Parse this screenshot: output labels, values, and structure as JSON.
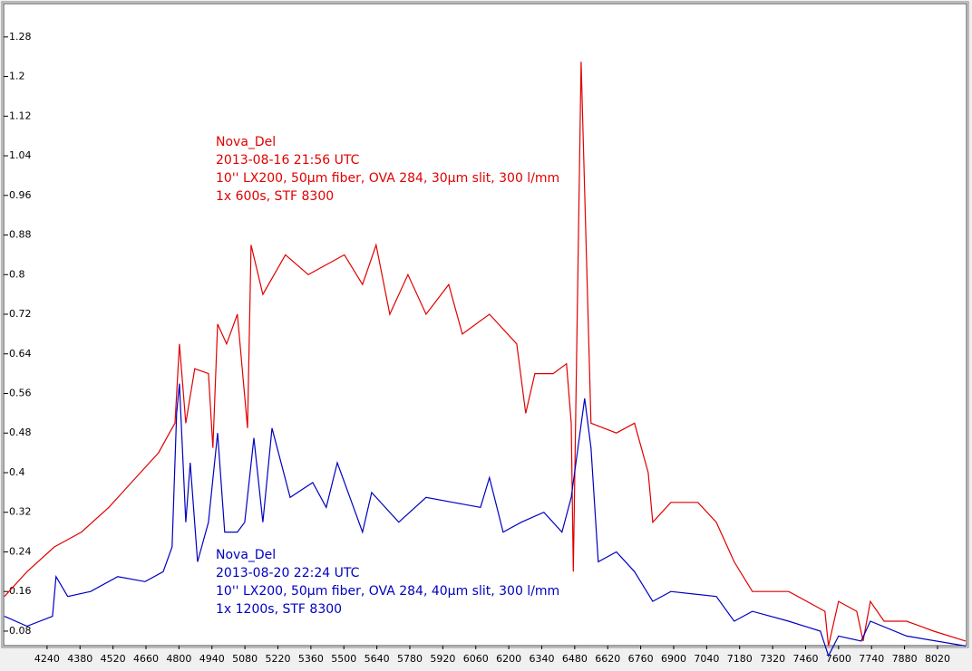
{
  "chart_data": {
    "type": "line",
    "xlim": [
      4048,
      8151
    ],
    "ylim": [
      0.047,
      1.34
    ],
    "xticks": [
      4240,
      4380,
      4520,
      4660,
      4800,
      4940,
      5080,
      5220,
      5360,
      5500,
      5640,
      5780,
      5920,
      6060,
      6200,
      6340,
      6480,
      6620,
      6760,
      6900,
      7040,
      7180,
      7320,
      7460,
      7600,
      7740,
      7880,
      8020
    ],
    "yticks": [
      0.08,
      0.16,
      0.24,
      0.32,
      0.4,
      0.48,
      0.56,
      0.64,
      0.72,
      0.8,
      0.88,
      0.96,
      1.04,
      1.12,
      1.2,
      1.28
    ],
    "series": [
      {
        "color": "#e00000",
        "label_lines": [
          "Nova_Del",
          "2013-08-16 21:56 UTC",
          "10'' LX200, 50µm fiber, OVA 284, 30µm slit, 300 l/mm",
          "1x 600s, STF 8300"
        ],
        "x": [
          4059,
          4155,
          4271,
          4386,
          4502,
          4617,
          4713,
          4771,
          4783,
          4802,
          4829,
          4867,
          4925,
          4944,
          4964,
          5002,
          5048,
          5091,
          5106,
          5156,
          5252,
          5349,
          5502,
          5579,
          5637,
          5695,
          5772,
          5849,
          5945,
          6003,
          6118,
          6234,
          6272,
          6311,
          6388,
          6445,
          6465,
          6474,
          6507,
          6549,
          6657,
          6734,
          6792,
          6811,
          6888,
          7003,
          7081,
          7157,
          7234,
          7388,
          7504,
          7542,
          7557,
          7600,
          7677,
          7704,
          7735,
          7793,
          7889,
          8004,
          8139
        ],
        "values": [
          0.15,
          0.2,
          0.25,
          0.28,
          0.33,
          0.39,
          0.44,
          0.49,
          0.5,
          0.66,
          0.5,
          0.61,
          0.6,
          0.45,
          0.7,
          0.66,
          0.72,
          0.49,
          0.86,
          0.76,
          0.84,
          0.8,
          0.84,
          0.78,
          0.86,
          0.72,
          0.8,
          0.72,
          0.78,
          0.68,
          0.72,
          0.66,
          0.52,
          0.6,
          0.6,
          0.62,
          0.5,
          0.2,
          1.23,
          0.5,
          0.48,
          0.5,
          0.4,
          0.3,
          0.34,
          0.34,
          0.3,
          0.22,
          0.16,
          0.16,
          0.13,
          0.12,
          0.05,
          0.14,
          0.12,
          0.06,
          0.14,
          0.1,
          0.1,
          0.08,
          0.06
        ]
      },
      {
        "color": "#0000c0",
        "label_lines": [
          "Nova_Del",
          "2013-08-20 22:24 UTC",
          "10'' LX200, 50µm fiber, OVA 284, 40µm slit, 300 l/mm",
          "1x 1200s, STF 8300"
        ],
        "x": [
          4059,
          4155,
          4263,
          4278,
          4328,
          4425,
          4540,
          4656,
          4733,
          4771,
          4790,
          4802,
          4829,
          4848,
          4879,
          4925,
          4964,
          4994,
          5048,
          5079,
          5118,
          5156,
          5195,
          5272,
          5368,
          5425,
          5472,
          5541,
          5579,
          5618,
          5733,
          5849,
          5964,
          6080,
          6118,
          6176,
          6253,
          6349,
          6426,
          6465,
          6522,
          6549,
          6580,
          6657,
          6734,
          6811,
          6888,
          7081,
          7157,
          7234,
          7388,
          7523,
          7557,
          7600,
          7696,
          7735,
          7889,
          8139
        ],
        "values": [
          0.11,
          0.09,
          0.11,
          0.19,
          0.15,
          0.16,
          0.19,
          0.18,
          0.2,
          0.25,
          0.52,
          0.58,
          0.3,
          0.42,
          0.22,
          0.3,
          0.48,
          0.28,
          0.28,
          0.3,
          0.47,
          0.3,
          0.49,
          0.35,
          0.38,
          0.33,
          0.42,
          0.33,
          0.28,
          0.36,
          0.3,
          0.35,
          0.34,
          0.33,
          0.39,
          0.28,
          0.3,
          0.32,
          0.28,
          0.35,
          0.55,
          0.45,
          0.22,
          0.24,
          0.2,
          0.14,
          0.16,
          0.15,
          0.1,
          0.12,
          0.1,
          0.08,
          0.03,
          0.07,
          0.06,
          0.1,
          0.07,
          0.05
        ]
      }
    ]
  }
}
